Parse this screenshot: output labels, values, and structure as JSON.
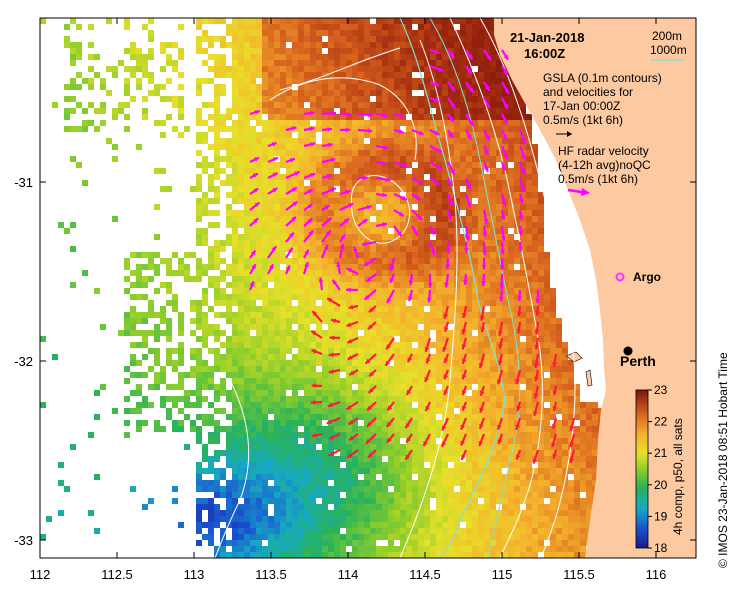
{
  "map": {
    "date": "21-Jan-2018",
    "time": "16:00Z",
    "legend": {
      "contour_200m": "200m",
      "contour_1000m": "1000m",
      "contour_200m_color": "#ffffff",
      "contour_1000m_color": "#7fe3d2"
    },
    "gsla": {
      "line1": "GSLA (0.1m contours)",
      "line2": "and velocities for",
      "line3": "17-Jan 00:00Z",
      "scale": "0.5m/s (1kt 6h)",
      "arrow_color": "#000000"
    },
    "radar": {
      "line1": "HF radar velocity",
      "line2": "(4-12h avg)noQC",
      "scale": "0.5m/s (1kt 6h)",
      "arrow_color": "#ff00ff"
    },
    "argo": {
      "label": "Argo",
      "color": "#ff33ff"
    },
    "city": {
      "label": "Perth"
    },
    "credit": "©  IMOS 23-Jan-2018 08:51 Hobart Time",
    "colorbar": {
      "title": "4h comp, p50, all sats",
      "ticks": [
        "23",
        "22",
        "21",
        "20",
        "19",
        "18"
      ],
      "min": 18,
      "max": 23
    },
    "x_axis": {
      "ticks": [
        "112",
        "112.5",
        "113",
        "113.5",
        "114",
        "114.5",
        "115",
        "115.5",
        "116"
      ]
    },
    "y_axis": {
      "ticks": [
        "-31",
        "-32",
        "-33"
      ]
    },
    "colors": {
      "land": "#fcc9a0",
      "sst_warm": "#c0392b",
      "sst_cool": "#1fa0b8"
    }
  }
}
